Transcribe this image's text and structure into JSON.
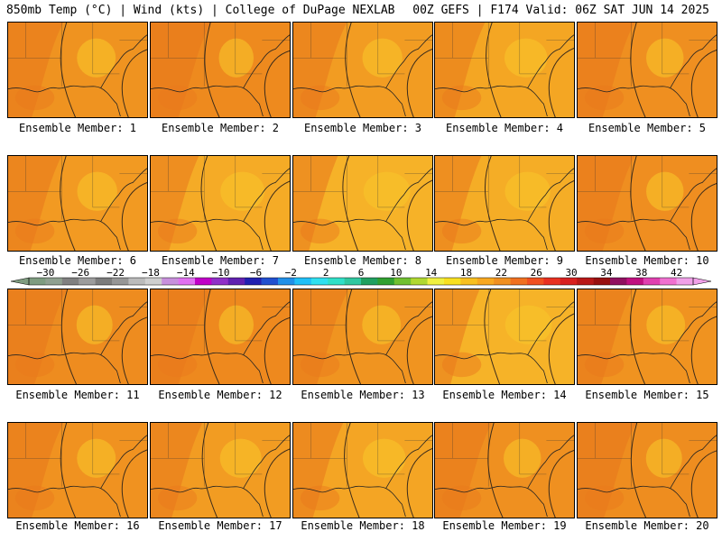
{
  "header": {
    "left": "850mb Temp (°C) | Wind (kts) | College of DuPage NEXLAB",
    "right": "00Z GEFS | F174 Valid: 06Z SAT JUN 14 2025"
  },
  "members": [
    {
      "label": "Ensemble Member: 1",
      "tint": "#ef9320",
      "warm_level": 0.55
    },
    {
      "label": "Ensemble Member: 2",
      "tint": "#ee8a1e",
      "warm_level": 0.7
    },
    {
      "label": "Ensemble Member: 3",
      "tint": "#f29c22",
      "warm_level": 0.5
    },
    {
      "label": "Ensemble Member: 4",
      "tint": "#f4a623",
      "warm_level": 0.4
    },
    {
      "label": "Ensemble Member: 5",
      "tint": "#ef8f20",
      "warm_level": 0.6
    },
    {
      "label": "Ensemble Member: 6",
      "tint": "#f29a22",
      "warm_level": 0.5
    },
    {
      "label": "Ensemble Member: 7",
      "tint": "#f5ab26",
      "warm_level": 0.35
    },
    {
      "label": "Ensemble Member: 8",
      "tint": "#f6b228",
      "warm_level": 0.25
    },
    {
      "label": "Ensemble Member: 9",
      "tint": "#f5ad26",
      "warm_level": 0.3
    },
    {
      "label": "Ensemble Member: 10",
      "tint": "#ef8e20",
      "warm_level": 0.6
    },
    {
      "label": "Ensemble Member: 11",
      "tint": "#ee8c1f",
      "warm_level": 0.65
    },
    {
      "label": "Ensemble Member: 12",
      "tint": "#ee891e",
      "warm_level": 0.7
    },
    {
      "label": "Ensemble Member: 13",
      "tint": "#f09420",
      "warm_level": 0.55
    },
    {
      "label": "Ensemble Member: 14",
      "tint": "#f6b328",
      "warm_level": 0.25
    },
    {
      "label": "Ensemble Member: 15",
      "tint": "#f09320",
      "warm_level": 0.55
    },
    {
      "label": "Ensemble Member: 16",
      "tint": "#f09220",
      "warm_level": 0.55
    },
    {
      "label": "Ensemble Member: 17",
      "tint": "#f29c22",
      "warm_level": 0.45
    },
    {
      "label": "Ensemble Member: 18",
      "tint": "#f4a524",
      "warm_level": 0.4
    },
    {
      "label": "Ensemble Member: 19",
      "tint": "#ef9020",
      "warm_level": 0.6
    },
    {
      "label": "Ensemble Member: 20",
      "tint": "#ee8d1f",
      "warm_level": 0.65
    }
  ],
  "colorbar": {
    "tick_labels": [
      "-30",
      "-26",
      "-22",
      "-18",
      "-14",
      "-10",
      "-6",
      "-2",
      "2",
      "6",
      "10",
      "14",
      "18",
      "22",
      "26",
      "30",
      "34",
      "38",
      "42"
    ],
    "colors": [
      "#7e9c80",
      "#8fa090",
      "#808080",
      "#9c9c9c",
      "#7c7c7c",
      "#969696",
      "#bbbbbb",
      "#cfcfcf",
      "#c890dc",
      "#e070f0",
      "#c000c8",
      "#9030c8",
      "#6020b0",
      "#2020b0",
      "#2050d0",
      "#2090e8",
      "#20c0f8",
      "#30e0f0",
      "#30e0c8",
      "#30c8a0",
      "#20a060",
      "#30a030",
      "#70c030",
      "#b0d830",
      "#f0f040",
      "#f8e020",
      "#f8c020",
      "#f8a820",
      "#f09020",
      "#f07020",
      "#f05020",
      "#e83020",
      "#d82020",
      "#b81818",
      "#981010",
      "#901060",
      "#c01080",
      "#e040b0",
      "#f070d0",
      "#f0a0e8"
    ]
  }
}
